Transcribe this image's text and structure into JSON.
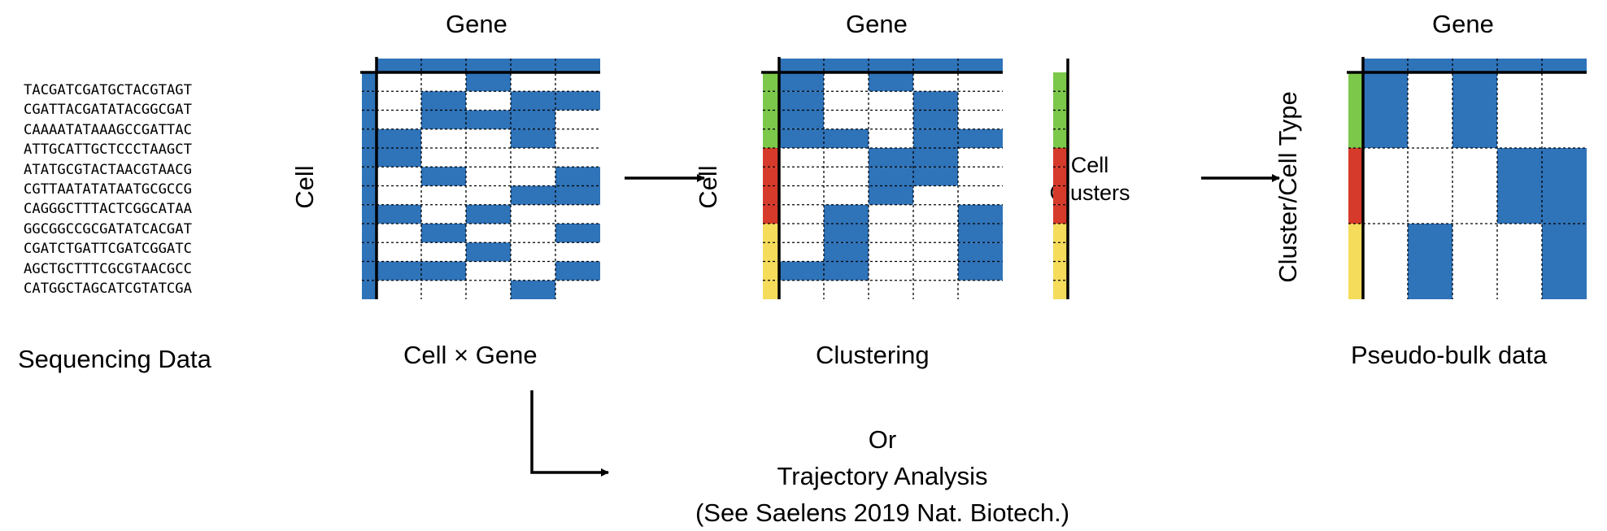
{
  "sequencing": {
    "lines": [
      "TACGATCGATGCTACGTAGT",
      "CGATTACGATATACGGCGAT",
      "CAAAATATAAAGCCGATTAC",
      "ATTGCATTGCTCCCTAAGCT",
      "ATATGCGTACTAACGTAACG",
      "CGTTAATATATAATGCGCCG",
      "CAGGGCTTTACTCGGCATAA",
      "GGCGGCCGCGATATCACGAT",
      "CGATCTGATTCGATCGGATC",
      "AGCTGCTTTCGCGTAACGCC",
      "CATGGCTAGCATCGTATCGA"
    ],
    "caption": "Sequencing Data"
  },
  "matrix1": {
    "col_label": "Gene",
    "row_label": "Cell",
    "caption": "Cell × Gene",
    "filled": [
      [
        0,
        0,
        1,
        0,
        0
      ],
      [
        0,
        1,
        0,
        1,
        1
      ],
      [
        0,
        1,
        1,
        1,
        0
      ],
      [
        1,
        0,
        0,
        1,
        0
      ],
      [
        1,
        0,
        0,
        0,
        0
      ],
      [
        0,
        1,
        0,
        0,
        1
      ],
      [
        0,
        0,
        0,
        1,
        1
      ],
      [
        1,
        0,
        1,
        0,
        0
      ],
      [
        0,
        1,
        0,
        0,
        1
      ],
      [
        0,
        0,
        1,
        0,
        0
      ],
      [
        1,
        1,
        0,
        0,
        1
      ],
      [
        0,
        0,
        0,
        1,
        0
      ]
    ]
  },
  "matrix2": {
    "col_label": "Gene",
    "row_label": "Cell",
    "caption": "Clustering",
    "cluster_colors": [
      "#7cc84a",
      "#7cc84a",
      "#7cc84a",
      "#7cc84a",
      "#d63a2a",
      "#d63a2a",
      "#d63a2a",
      "#d63a2a",
      "#f5dc5a",
      "#f5dc5a",
      "#f5dc5a",
      "#f5dc5a"
    ],
    "filled": [
      [
        1,
        0,
        1,
        0,
        0
      ],
      [
        1,
        0,
        0,
        1,
        0
      ],
      [
        1,
        0,
        0,
        1,
        0
      ],
      [
        1,
        1,
        0,
        1,
        1
      ],
      [
        0,
        0,
        1,
        1,
        0
      ],
      [
        0,
        0,
        1,
        1,
        0
      ],
      [
        0,
        0,
        1,
        0,
        0
      ],
      [
        0,
        1,
        0,
        0,
        1
      ],
      [
        0,
        1,
        0,
        0,
        1
      ],
      [
        0,
        1,
        0,
        0,
        1
      ],
      [
        1,
        1,
        0,
        0,
        1
      ],
      [
        0,
        0,
        0,
        0,
        0
      ]
    ]
  },
  "clusters": {
    "label_line1": "Cell",
    "label_line2": "Clusters",
    "colors": [
      "#7cc84a",
      "#d63a2a",
      "#f5dc5a"
    ]
  },
  "matrix3": {
    "col_label": "Gene",
    "row_label": "Cluster/Cell Type",
    "caption": "Pseudo-bulk data",
    "cluster_colors": [
      "#7cc84a",
      "#d63a2a",
      "#f5dc5a"
    ],
    "filled": [
      [
        1,
        0,
        1,
        0,
        0
      ],
      [
        0,
        0,
        0,
        1,
        1
      ],
      [
        0,
        1,
        0,
        0,
        1
      ]
    ]
  },
  "alternative": {
    "line1": "Or",
    "line2": "Trajectory Analysis",
    "line3": "(See Saelens 2019 Nat. Biotech.)"
  },
  "colors": {
    "fill": "#2f73b9",
    "grid": "#000000"
  }
}
